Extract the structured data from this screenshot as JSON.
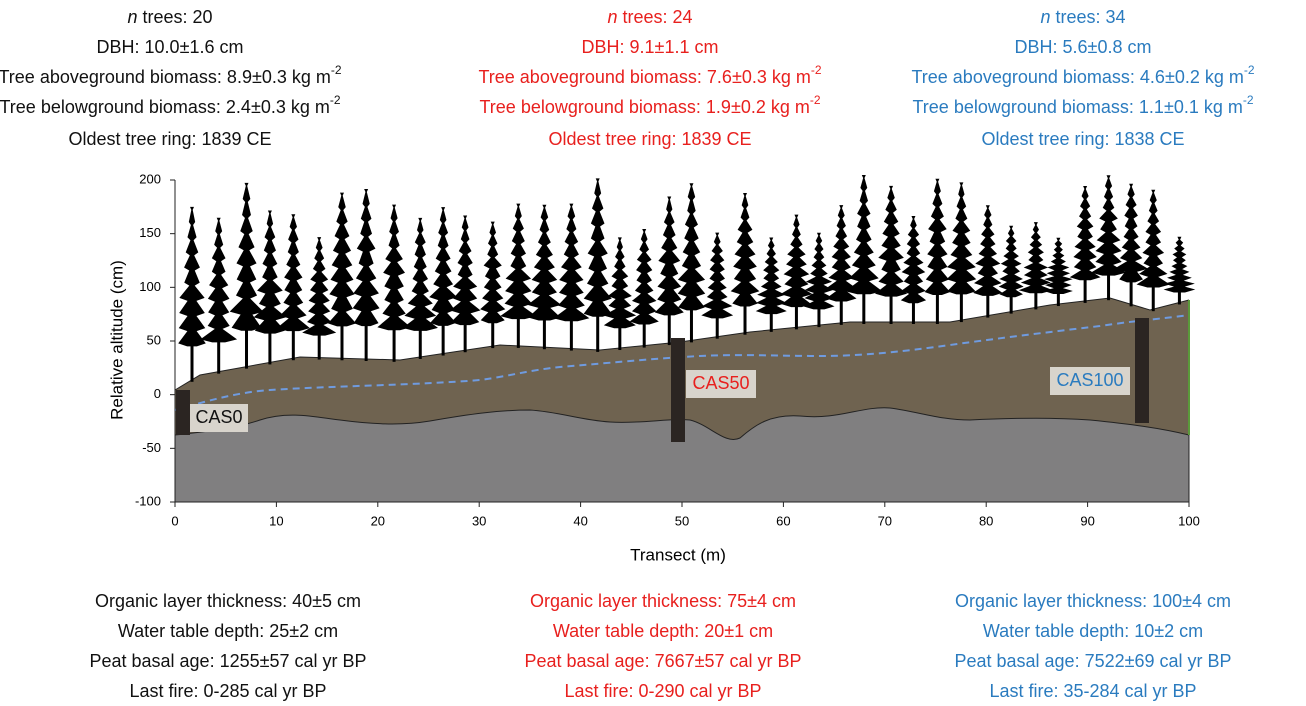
{
  "sites": [
    {
      "top": {
        "n": "n",
        "trees": " trees: 20",
        "dbh": "DBH: 10.0±1.6 cm",
        "agb": "Tree aboveground biomass: 8.9±0.3 kg m",
        "agb_sup": "-2",
        "bgb": "Tree belowground biomass: 2.4±0.3 kg m",
        "bgb_sup": "-2",
        "ring": "Oldest tree ring: 1839 CE"
      },
      "label": "CAS0",
      "bottom": {
        "organic": "Organic layer thickness: 40±5 cm",
        "water": "Water table depth: 25±2 cm",
        "basal": "Peat basal age: 1255±57 cal yr BP",
        "fire": "Last fire: 0-285 cal yr BP"
      }
    },
    {
      "top": {
        "n": "n",
        "trees": " trees: 24",
        "dbh": "DBH: 9.1±1.1 cm",
        "agb": "Tree aboveground biomass: 7.6±0.3 kg m",
        "agb_sup": "-2",
        "bgb": "Tree belowground biomass: 1.9±0.2 kg m",
        "bgb_sup": "-2",
        "ring": "Oldest tree ring: 1839 CE"
      },
      "label": "CAS50",
      "bottom": {
        "organic": "Organic layer thickness: 75±4 cm",
        "water": "Water table depth: 20±1 cm",
        "basal": "Peat basal age: 7667±57 cal yr BP",
        "fire": "Last fire: 0-290 cal yr BP"
      }
    },
    {
      "top": {
        "n": "n",
        "trees": " trees: 34",
        "dbh": "DBH: 5.6±0.8 cm",
        "agb": "Tree aboveground biomass: 4.6±0.2 kg m",
        "agb_sup": "-2",
        "bgb": "Tree belowground biomass: 1.1±0.1 kg m",
        "bgb_sup": "-2",
        "ring": "Oldest tree ring: 1838 CE"
      },
      "label": "CAS100",
      "bottom": {
        "organic": "Organic layer thickness: 100±4 cm",
        "water": "Water table depth: 10±2 cm",
        "basal": "Peat basal age: 7522±69 cal yr BP",
        "fire": "Last fire: 35-284 cal yr BP"
      }
    }
  ],
  "axes": {
    "xlabel": "Transect (m)",
    "ylabel": "Relative altitude (cm)",
    "xlim": [
      0,
      100
    ],
    "ylim": [
      -100,
      200
    ],
    "xticks": [
      0,
      10,
      20,
      30,
      40,
      50,
      60,
      70,
      80,
      90,
      100
    ],
    "yticks": [
      -100,
      -50,
      0,
      50,
      100,
      150,
      200
    ]
  }
}
